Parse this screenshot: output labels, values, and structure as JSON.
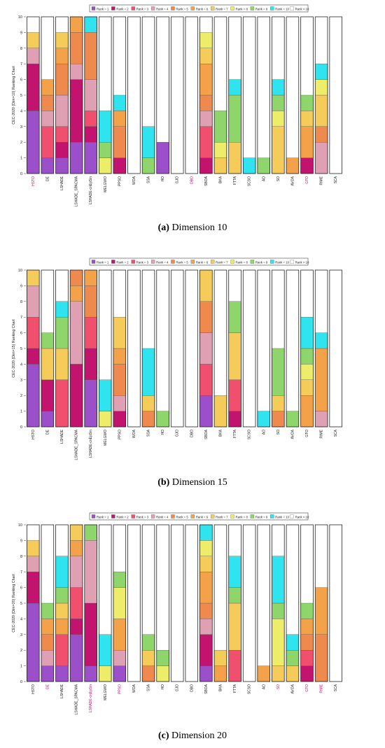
{
  "colors": {
    "Rank = 1": "#9b4fc9",
    "Rank = 2": "#c2146e",
    "Rank = 3": "#f0506e",
    "Rank = 4": "#e0a0b4",
    "Rank = 5": "#ee8a4e",
    "Rank = 6": "#f4a24a",
    "Rank = 7": "#f5cc5a",
    "Rank = 8": "#eded6a",
    "Rank = 9": "#8ed66c",
    "Rank = 10": "#2fe3ef",
    "Rank > 10": "#ffffff"
  },
  "legend": [
    "Rank = 1",
    "Rank = 2",
    "Rank = 3",
    "Rank = 4",
    "Rank = 5",
    "Rank = 6",
    "Rank = 7",
    "Rank = 8",
    "Rank = 9",
    "Rank = 10",
    "Rank > 10"
  ],
  "chart_data": [
    {
      "type": "bar",
      "stacked": true,
      "caption_tag": "(a)",
      "caption_text": "Dimension 10",
      "ylabel": "CEC-2020 (Dim=10) Ranking Chart",
      "ylim": [
        0,
        10
      ],
      "yticks": [
        "0",
        "1",
        "2",
        "3",
        "4",
        "5",
        "6",
        "7",
        "8",
        "9",
        "10"
      ],
      "categories": [
        "HSTO",
        "DE",
        "LSHADE",
        "LSHADE_SPACMA",
        "LSHADE-cnEpSin",
        "MELGWO",
        "PPSO",
        "WOA",
        "SSA",
        "HO",
        "GJO",
        "DBO",
        "SBOA",
        "BKA",
        "FTTA",
        "SCSO",
        "AO",
        "SO",
        "AVOA",
        "GTO",
        "RIME",
        "SCA"
      ],
      "category_colors": [
        "#c2146e",
        "",
        "",
        "",
        "",
        "",
        "",
        "",
        "",
        "",
        "",
        "#c2146e",
        "",
        "",
        "",
        "",
        "",
        "",
        "",
        "#c2146e",
        "",
        ""
      ],
      "stacks": [
        [
          [
            1,
            4
          ],
          [
            2,
            3
          ],
          [
            4,
            1
          ],
          [
            7,
            1
          ]
        ],
        [
          [
            1,
            1
          ],
          [
            3,
            2
          ],
          [
            4,
            1
          ],
          [
            5,
            1
          ],
          [
            6,
            1
          ]
        ],
        [
          [
            1,
            1
          ],
          [
            2,
            1
          ],
          [
            3,
            1
          ],
          [
            4,
            2
          ],
          [
            5,
            2
          ],
          [
            6,
            1
          ],
          [
            7,
            1
          ]
        ],
        [
          [
            1,
            2
          ],
          [
            2,
            4
          ],
          [
            4,
            1
          ],
          [
            5,
            2
          ],
          [
            6,
            1
          ]
        ],
        [
          [
            1,
            2
          ],
          [
            2,
            1
          ],
          [
            3,
            1
          ],
          [
            4,
            2
          ],
          [
            5,
            3
          ],
          [
            10,
            1
          ]
        ],
        [
          [
            8,
            1
          ],
          [
            9,
            1
          ],
          [
            10,
            2
          ]
        ],
        [
          [
            2,
            1
          ],
          [
            5,
            2
          ],
          [
            6,
            1
          ],
          [
            10,
            1
          ]
        ],
        [],
        [
          [
            9,
            1
          ],
          [
            10,
            2
          ]
        ],
        [
          [
            1,
            2
          ]
        ],
        [],
        [],
        [
          [
            2,
            1
          ],
          [
            3,
            2
          ],
          [
            4,
            1
          ],
          [
            5,
            1
          ],
          [
            6,
            2
          ],
          [
            7,
            1
          ],
          [
            8,
            1
          ]
        ],
        [
          [
            7,
            1
          ],
          [
            8,
            1
          ],
          [
            9,
            2
          ]
        ],
        [
          [
            7,
            2
          ],
          [
            9,
            3
          ],
          [
            10,
            1
          ]
        ],
        [
          [
            10,
            1
          ]
        ],
        [
          [
            9,
            1
          ]
        ],
        [
          [
            7,
            3
          ],
          [
            8,
            1
          ],
          [
            9,
            1
          ],
          [
            10,
            1
          ]
        ],
        [
          [
            6,
            1
          ]
        ],
        [
          [
            2,
            1
          ],
          [
            6,
            2
          ],
          [
            7,
            1
          ],
          [
            9,
            1
          ]
        ],
        [
          [
            4,
            2
          ],
          [
            5,
            1
          ],
          [
            7,
            2
          ],
          [
            8,
            1
          ],
          [
            10,
            1
          ]
        ],
        []
      ]
    },
    {
      "type": "bar",
      "stacked": true,
      "caption_tag": "(b)",
      "caption_text": "Dimension 15",
      "ylabel": "CEC-2020 (Dim=15) Ranking Chart",
      "ylim": [
        0,
        10
      ],
      "yticks": [
        "0",
        "1",
        "2",
        "3",
        "4",
        "5",
        "6",
        "7",
        "8",
        "9",
        "10"
      ],
      "categories": [
        "HSTO",
        "DE",
        "LSHADE",
        "LSHADE_SPACMA",
        "LSHADE-cnEpSin",
        "MELGWO",
        "PPSO",
        "WOA",
        "SSA",
        "HO",
        "GJO",
        "DBO",
        "SBOA",
        "BKA",
        "FTTA",
        "SCSO",
        "AO",
        "SO",
        "AVOA",
        "GTO",
        "RIME",
        "SCA"
      ],
      "category_colors": [
        "",
        "",
        "",
        "",
        "",
        "",
        "",
        "",
        "",
        "",
        "",
        "",
        "",
        "",
        "",
        "",
        "",
        "",
        "",
        "",
        "",
        ""
      ],
      "stacks": [
        [
          [
            1,
            4
          ],
          [
            2,
            1
          ],
          [
            3,
            2
          ],
          [
            4,
            2
          ],
          [
            7,
            1
          ]
        ],
        [
          [
            1,
            1
          ],
          [
            2,
            2
          ],
          [
            7,
            2
          ],
          [
            9,
            1
          ]
        ],
        [
          [
            3,
            3
          ],
          [
            7,
            2
          ],
          [
            9,
            2
          ],
          [
            10,
            1
          ]
        ],
        [
          [
            2,
            4
          ],
          [
            4,
            4
          ],
          [
            6,
            1
          ],
          [
            5,
            1
          ]
        ],
        [
          [
            1,
            3
          ],
          [
            2,
            2
          ],
          [
            3,
            2
          ],
          [
            5,
            2
          ],
          [
            6,
            1
          ]
        ],
        [
          [
            8,
            1
          ],
          [
            10,
            2
          ]
        ],
        [
          [
            2,
            1
          ],
          [
            4,
            1
          ],
          [
            5,
            2
          ],
          [
            6,
            1
          ],
          [
            7,
            2
          ]
        ],
        [],
        [
          [
            5,
            1
          ],
          [
            7,
            1
          ],
          [
            10,
            3
          ]
        ],
        [
          [
            9,
            1
          ]
        ],
        [],
        [],
        [
          [
            1,
            2
          ],
          [
            3,
            2
          ],
          [
            4,
            2
          ],
          [
            5,
            2
          ],
          [
            7,
            2
          ]
        ],
        [
          [
            7,
            2
          ]
        ],
        [
          [
            2,
            1
          ],
          [
            3,
            2
          ],
          [
            7,
            3
          ],
          [
            9,
            2
          ]
        ],
        [],
        [
          [
            10,
            1
          ]
        ],
        [
          [
            5,
            1
          ],
          [
            7,
            1
          ],
          [
            9,
            3
          ]
        ],
        [
          [
            9,
            1
          ]
        ],
        [
          [
            6,
            2
          ],
          [
            7,
            1
          ],
          [
            8,
            1
          ],
          [
            9,
            1
          ],
          [
            10,
            2
          ]
        ],
        [
          [
            4,
            1
          ],
          [
            6,
            4
          ],
          [
            10,
            1
          ]
        ],
        []
      ]
    },
    {
      "type": "bar",
      "stacked": true,
      "caption_tag": "(c)",
      "caption_text": "Dimension 20",
      "ylabel": "CEC-2020 (Dim=20) Ranking Chart",
      "ylim": [
        0,
        10
      ],
      "yticks": [
        "0",
        "1",
        "2",
        "3",
        "4",
        "5",
        "6",
        "7",
        "8",
        "9",
        "10"
      ],
      "categories": [
        "HSTO",
        "DE",
        "LSHADE",
        "LSHADE_SPACMA",
        "LSHADE-cnEpSin",
        "MELGWO",
        "PPSO",
        "WOA",
        "SSA",
        "HO",
        "GJO",
        "DBO",
        "SBOA",
        "BKA",
        "FTTA",
        "SCSO",
        "AO",
        "SO",
        "AVOA",
        "GTO",
        "RIME",
        "SCA"
      ],
      "category_colors": [
        "",
        "#c2146e",
        "",
        "",
        "#c2146e",
        "",
        "#c2146e",
        "",
        "",
        "",
        "",
        "",
        "",
        "",
        "",
        "",
        "",
        "#c2146e",
        "",
        "#c2146e",
        "#c2146e",
        ""
      ],
      "stacks": [
        [
          [
            1,
            5
          ],
          [
            2,
            2
          ],
          [
            4,
            1
          ],
          [
            7,
            1
          ]
        ],
        [
          [
            1,
            1
          ],
          [
            4,
            1
          ],
          [
            5,
            1
          ],
          [
            6,
            1
          ],
          [
            9,
            1
          ]
        ],
        [
          [
            1,
            1
          ],
          [
            3,
            2
          ],
          [
            6,
            1
          ],
          [
            7,
            1
          ],
          [
            9,
            1
          ],
          [
            10,
            2
          ]
        ],
        [
          [
            1,
            3
          ],
          [
            2,
            1
          ],
          [
            3,
            2
          ],
          [
            4,
            2
          ],
          [
            6,
            1
          ],
          [
            7,
            1
          ]
        ],
        [
          [
            1,
            1
          ],
          [
            2,
            4
          ],
          [
            4,
            4
          ],
          [
            9,
            1
          ]
        ],
        [
          [
            8,
            1
          ],
          [
            10,
            2
          ]
        ],
        [
          [
            1,
            1
          ],
          [
            4,
            1
          ],
          [
            6,
            2
          ],
          [
            8,
            2
          ],
          [
            9,
            1
          ]
        ],
        [],
        [
          [
            5,
            1
          ],
          [
            7,
            1
          ],
          [
            9,
            1
          ]
        ],
        [
          [
            8,
            1
          ],
          [
            9,
            1
          ]
        ],
        [],
        [],
        [
          [
            1,
            1
          ],
          [
            2,
            2
          ],
          [
            4,
            1
          ],
          [
            5,
            1
          ],
          [
            6,
            2
          ],
          [
            7,
            1
          ],
          [
            8,
            1
          ],
          [
            10,
            1
          ]
        ],
        [
          [
            6,
            1
          ],
          [
            7,
            1
          ]
        ],
        [
          [
            3,
            2
          ],
          [
            7,
            3
          ],
          [
            9,
            1
          ],
          [
            10,
            2
          ]
        ],
        [],
        [
          [
            6,
            1
          ]
        ],
        [
          [
            7,
            1
          ],
          [
            8,
            3
          ],
          [
            9,
            1
          ],
          [
            10,
            3
          ]
        ],
        [
          [
            7,
            1
          ],
          [
            9,
            1
          ],
          [
            10,
            1
          ]
        ],
        [
          [
            2,
            1
          ],
          [
            3,
            1
          ],
          [
            5,
            1
          ],
          [
            6,
            1
          ],
          [
            9,
            1
          ]
        ],
        [
          [
            5,
            3
          ],
          [
            6,
            3
          ]
        ],
        []
      ]
    }
  ]
}
